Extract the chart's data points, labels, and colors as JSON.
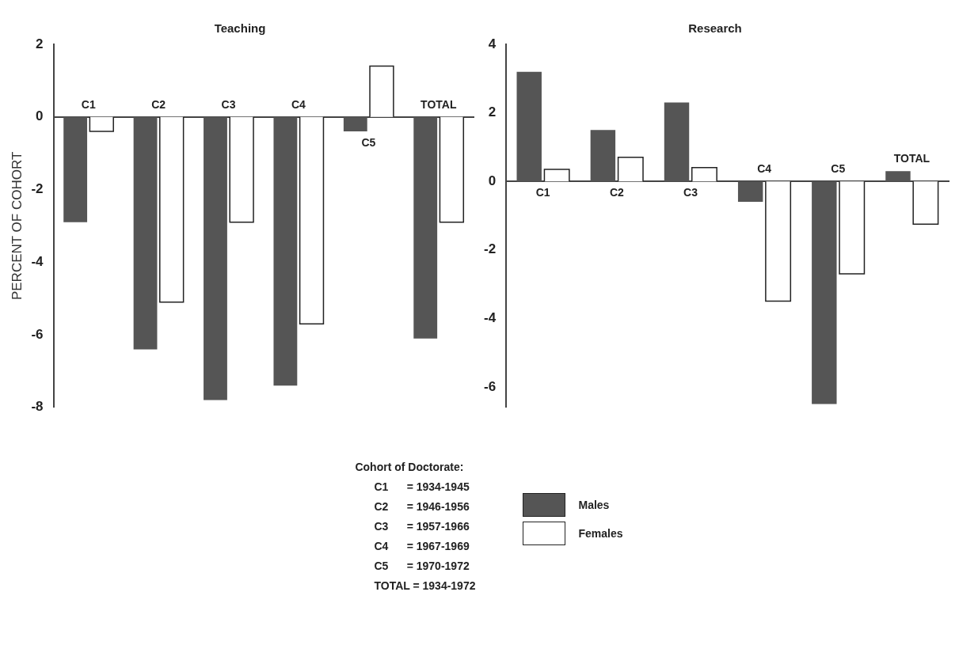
{
  "chart_data": [
    {
      "type": "bar",
      "title": "Teaching",
      "ylabel": "PERCENT OF COHORT",
      "categories": [
        "C1",
        "C2",
        "C3",
        "C4",
        "C5",
        "TOTAL"
      ],
      "series": [
        {
          "name": "Males",
          "color": "#555555",
          "values": [
            -2.9,
            -6.4,
            -7.8,
            -7.4,
            -0.4,
            -6.1
          ]
        },
        {
          "name": "Females",
          "color": "#ffffff",
          "values": [
            -0.4,
            -5.1,
            -2.9,
            -5.7,
            1.4,
            -2.9
          ]
        }
      ],
      "ylim": [
        -8,
        2
      ],
      "yticks": [
        -8,
        -6,
        -4,
        -2,
        0,
        2
      ],
      "grid": false,
      "legend": "bottom",
      "annotations": [
        "Cohort of Doctorate:",
        "C1      = 1934-1945",
        "C2      = 1946-1956",
        "C3      = 1957-1966",
        "C4      = 1967-1969",
        "C5      = 1970-1972",
        "TOTAL = 1934-1972"
      ]
    },
    {
      "type": "bar",
      "title": "Research",
      "categories": [
        "C1",
        "C2",
        "C3",
        "C4",
        "C5",
        "TOTAL"
      ],
      "series": [
        {
          "color": "#555555",
          "values": [
            3.2,
            1.5,
            2.3,
            -0.6,
            -6.5,
            0.3
          ]
        },
        {
          "color": "#ffffff",
          "values": [
            0.35,
            0.7,
            0.4,
            -3.5,
            -2.7,
            -1.25
          ]
        }
      ],
      "ylim": [
        -6.6,
        4
      ],
      "yticks": [
        -6,
        -4,
        -2,
        0,
        2,
        4
      ],
      "grid": false
    }
  ]
}
